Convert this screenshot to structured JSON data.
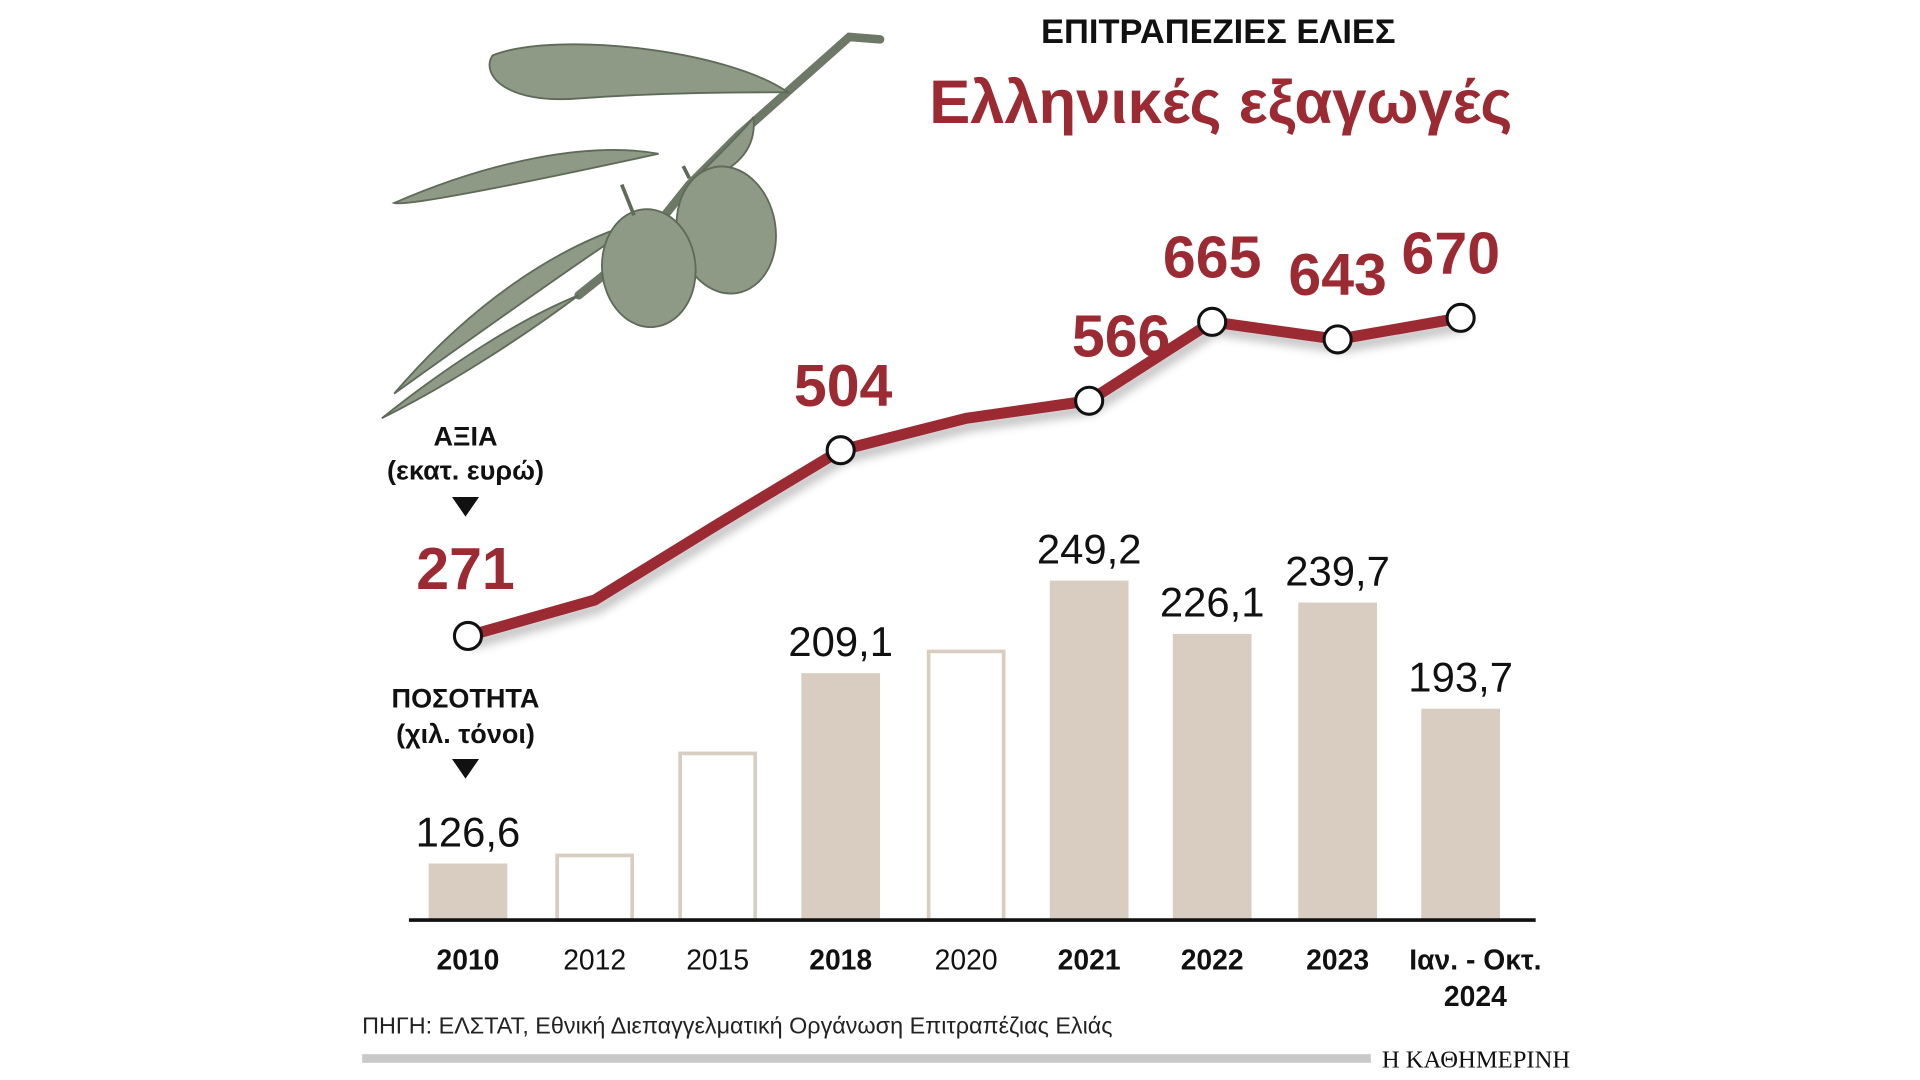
{
  "chart_data": {
    "type": "bar+line",
    "supertitle": "ΕΠΙΤΡΑΠΕΖΙΕΣ ΕΛΙΕΣ",
    "title": "Ελληνικές εξαγωγές",
    "categories": [
      "2010",
      "2012",
      "2015",
      "2018",
      "2020",
      "2021",
      "2022",
      "2023",
      "Ιαν. - Οκτ. 2024"
    ],
    "category_lines": [
      [
        "2010"
      ],
      [
        "2012"
      ],
      [
        "2015"
      ],
      [
        "2018"
      ],
      [
        "2020"
      ],
      [
        "2021"
      ],
      [
        "2022"
      ],
      [
        "2023"
      ],
      [
        "Ιαν. - Οκτ.",
        "2024"
      ]
    ],
    "category_bold": [
      true,
      false,
      false,
      true,
      false,
      true,
      true,
      true,
      true
    ],
    "line_series": {
      "name": "ΑΞΙΑ (εκατ. ευρώ)",
      "label_lines": [
        "ΑΞΙΑ",
        "(εκατ. ευρώ)"
      ],
      "values": [
        271,
        316,
        411,
        504,
        544,
        566,
        665,
        643,
        670
      ],
      "labels": [
        "271",
        "",
        "",
        "504",
        "",
        "566",
        "665",
        "643",
        "670"
      ],
      "markers": [
        true,
        false,
        false,
        true,
        false,
        true,
        true,
        true,
        true
      ],
      "color": "#9b2a33"
    },
    "bar_series": {
      "name": "ΠΟΣΟΤΗΤΑ (χιλ. τόνοι)",
      "label_lines": [
        "ΠΟΣΟΤΗΤΑ",
        "(χιλ. τόνοι)"
      ],
      "values": [
        126.6,
        130.9,
        175.1,
        209.1,
        219.3,
        249.2,
        226.1,
        239.7,
        193.7
      ],
      "labels": [
        "126,6",
        "",
        "",
        "209,1",
        "",
        "249,2",
        "226,1",
        "239,7",
        "193,7"
      ],
      "filled": [
        true,
        false,
        false,
        true,
        false,
        true,
        true,
        true,
        true
      ],
      "color": "#d9cdc1"
    },
    "grid": false,
    "source": "ΠΗΓΗ: ΕΛΣΤΑΤ, Εθνική Διεπαγγελματική Οργάνωση Επιτραπέζιας Ελιάς",
    "publisher": "Η ΚΑΘΗΜΕΡΙΝΗ"
  }
}
